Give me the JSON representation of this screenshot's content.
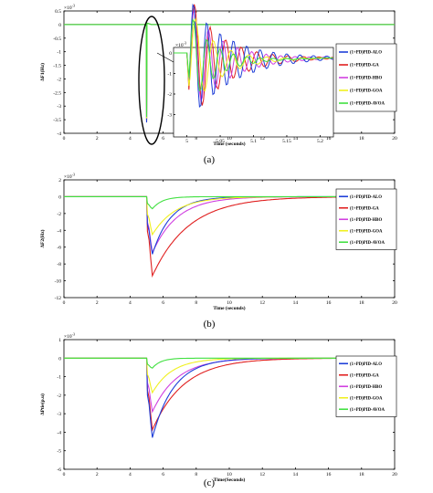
{
  "chart_data": [
    {
      "type": "line",
      "caption": "(a)",
      "exponent": "×10",
      "exponent_power": "-3",
      "ylabel": "ΔF1(Hz)",
      "xlabel": "Time (seconds)",
      "xlim": [
        0,
        20
      ],
      "ylim": [
        -4,
        0.5
      ],
      "xticks": [
        "0",
        "2",
        "4",
        "6",
        "8",
        "10",
        "12",
        "14",
        "16",
        "18",
        "20"
      ],
      "yticks": [
        "0.5",
        "0",
        "-0.5",
        "-1",
        "-1.5",
        "-2",
        "-2.5",
        "-3",
        "-3.5",
        "-4"
      ],
      "legend": [
        "(1+PD)PID-ALO",
        "(1+PD)PID-GA",
        "(1+PD)PID-HBO",
        "(1+PD)PID-GOA",
        "(1+PD)PID-AVOA"
      ],
      "colors": [
        "#1f3fd8",
        "#e02020",
        "#d040e0",
        "#f0f020",
        "#40e040"
      ],
      "inset": {
        "exponent": "×10",
        "exponent_power": "-3",
        "xticks": [
          "5",
          "5.05",
          "5.1",
          "5.15",
          "5.2"
        ],
        "yticks": [
          "0",
          "-1",
          "-2",
          "-3"
        ]
      }
    },
    {
      "type": "line",
      "caption": "(b)",
      "exponent": "×10",
      "exponent_power": "-3",
      "ylabel": "ΔF2(Hz)",
      "xlabel": "Time (seconds)",
      "xlim": [
        0,
        20
      ],
      "ylim": [
        -12,
        2
      ],
      "xticks": [
        "0",
        "2",
        "4",
        "6",
        "8",
        "10",
        "12",
        "14",
        "16",
        "18",
        "20"
      ],
      "yticks": [
        "2",
        "0",
        "-2",
        "-4",
        "-6",
        "-8",
        "-10",
        "-12"
      ],
      "legend": [
        "(1+PD)PID-ALO",
        "(1+PD)PID-GA",
        "(1+PD)PID-HBO",
        "(1+PD)PID-GOA",
        "(1+PD)PID-AVOA"
      ],
      "colors": [
        "#1f3fd8",
        "#e02020",
        "#d040e0",
        "#f0f020",
        "#40e040"
      ],
      "series": [
        {
          "name": "(1+PD)PID-ALO",
          "min": -8.2,
          "tau": 1.1
        },
        {
          "name": "(1+PD)PID-GA",
          "min": -10.3,
          "tau": 2.2
        },
        {
          "name": "(1+PD)PID-HBO",
          "min": -7.6,
          "tau": 1.5
        },
        {
          "name": "(1+PD)PID-GOA",
          "min": -5.2,
          "tau": 1.4
        },
        {
          "name": "(1+PD)PID-AVOA",
          "min": -2.0,
          "tau": 0.6
        }
      ]
    },
    {
      "type": "line",
      "caption": "(c)",
      "exponent": "×10",
      "exponent_power": "-3",
      "ylabel": "ΔPtie(p.u)",
      "xlabel": "Time(Seconds)",
      "xlim": [
        0,
        20
      ],
      "ylim": [
        -6,
        1
      ],
      "xticks": [
        "0",
        "2",
        "4",
        "6",
        "8",
        "10",
        "12",
        "14",
        "16",
        "18",
        "20"
      ],
      "yticks": [
        "1",
        "0",
        "-1",
        "-2",
        "-3",
        "-4",
        "-5",
        "-6"
      ],
      "legend": [
        "(1+PD)PID-ALO",
        "(1+PD)PID-GA",
        "(1+PD)PID-HBO",
        "(1+PD)PID-GOA",
        "(1+PD)PID-AVOA"
      ],
      "colors": [
        "#1f3fd8",
        "#e02020",
        "#d040e0",
        "#f0f020",
        "#40e040"
      ],
      "series": [
        {
          "name": "(1+PD)PID-ALO",
          "min": -5.0,
          "tau": 1.3
        },
        {
          "name": "(1+PD)PID-GA",
          "min": -4.3,
          "tau": 1.9
        },
        {
          "name": "(1+PD)PID-HBO",
          "min": -3.3,
          "tau": 1.5
        },
        {
          "name": "(1+PD)PID-GOA",
          "min": -2.2,
          "tau": 1.2
        },
        {
          "name": "(1+PD)PID-AVOA",
          "min": -0.8,
          "tau": 0.5
        }
      ]
    }
  ]
}
